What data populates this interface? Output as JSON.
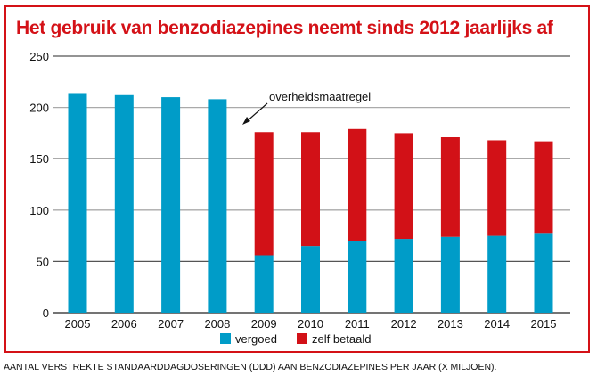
{
  "chart_data": {
    "type": "bar",
    "stacked": true,
    "title": "Het gebruik van benzodiazepines neemt sinds 2012 jaarlijks af",
    "caption": "AANTAL VERSTREKTE STANDAARDDAGDOSERINGEN (DDD) AAN BENZODIAZEPINES PER JAAR (X MILJOEN).",
    "categories": [
      "2005",
      "2006",
      "2007",
      "2008",
      "2009",
      "2010",
      "2011",
      "2012",
      "2013",
      "2014",
      "2015"
    ],
    "series": [
      {
        "name": "vergoed",
        "color": "#009cc8",
        "values": [
          214,
          212,
          210,
          208,
          56,
          65,
          70,
          72,
          74,
          75,
          77
        ]
      },
      {
        "name": "zelf betaald",
        "color": "#d21117",
        "values": [
          0,
          0,
          0,
          0,
          120,
          111,
          109,
          103,
          97,
          93,
          90
        ]
      }
    ],
    "ylim": [
      0,
      250
    ],
    "yticks": [
      0,
      50,
      100,
      150,
      200,
      250
    ],
    "annotation": {
      "text": "overheidsmaatregel",
      "category": "2009"
    },
    "grid": true,
    "legend": "bottom"
  }
}
